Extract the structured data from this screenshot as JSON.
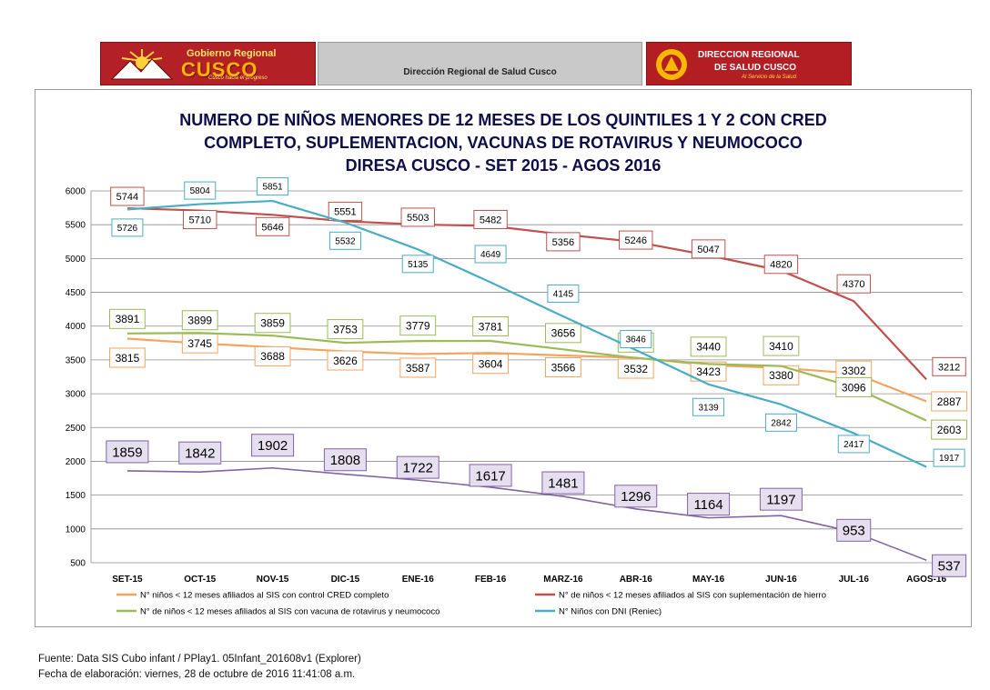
{
  "header": {
    "left_logo": {
      "line1": "Gobierno Regional",
      "line2": "CUSCO",
      "line3": "Cusco hacia el progreso"
    },
    "center_text": "Dirección Regional de Salud Cusco",
    "right_logo": {
      "line1": "DIRECCION REGIONAL",
      "line2": "DE SALUD CUSCO",
      "line3": "Al Servicio de la Salud"
    }
  },
  "chart_data": {
    "type": "line",
    "title_lines": [
      "NUMERO DE NIÑOS MENORES DE 12 MESES DE LOS QUINTILES 1 Y 2 CON CRED",
      "COMPLETO, SUPLEMENTACION, VACUNAS DE ROTAVIRUS Y NEUMOCOCO",
      "DIRESA CUSCO -  SET 2015 - AGOS 2016"
    ],
    "categories": [
      "SET-15",
      "OCT-15",
      "NOV-15",
      "DIC-15",
      "ENE-16",
      "FEB-16",
      "MARZ-16",
      "ABR-16",
      "MAY-16",
      "JUN-16",
      "JUL-16",
      "AGOS-16"
    ],
    "ylim": [
      500,
      6000
    ],
    "yticks": [
      500,
      1000,
      1500,
      2000,
      2500,
      3000,
      3500,
      4000,
      4500,
      5000,
      5500,
      6000
    ],
    "grid": true,
    "legend_position": "bottom",
    "series": [
      {
        "name": "N° niños < 12 meses afiliados al SIS con control CRED completo",
        "color": "#f4a460",
        "values": [
          3815,
          3745,
          3688,
          3626,
          3587,
          3604,
          3566,
          3532,
          3423,
          3380,
          3302,
          2887
        ]
      },
      {
        "name": "N° de niños < 12 meses afiliados al SIS con suplementación de hierro",
        "color": "#c0504d",
        "values": [
          5744,
          5710,
          5646,
          5551,
          5503,
          5482,
          5356,
          5246,
          5047,
          4820,
          4370,
          3212
        ]
      },
      {
        "name": "N° de niños < 12 meses afiliados al SIS con  vacuna de rotavirus y neumococo",
        "color": "#9bbb59",
        "values": [
          3891,
          3899,
          3859,
          3753,
          3779,
          3781,
          3656,
          3528,
          3440,
          3410,
          3096,
          2603
        ]
      },
      {
        "name": "N°  Niños con DNI (Reniec)",
        "color": "#4bacc6",
        "values": [
          5726,
          5804,
          5851,
          5532,
          5135,
          4649,
          4145,
          3646,
          3139,
          2842,
          2417,
          1917
        ]
      },
      {
        "name": "",
        "color": "#8064a2",
        "values": [
          1859,
          1842,
          1902,
          1808,
          1722,
          1617,
          1481,
          1296,
          1164,
          1197,
          953,
          537
        ]
      }
    ]
  },
  "footer": {
    "source": "Fuente: Data SIS Cubo infant / PPlay1. 05Infant_201608v1 (Explorer)",
    "date": "Fecha de elaboración: viernes, 28 de octubre de 2016 11:41:08 a.m."
  }
}
